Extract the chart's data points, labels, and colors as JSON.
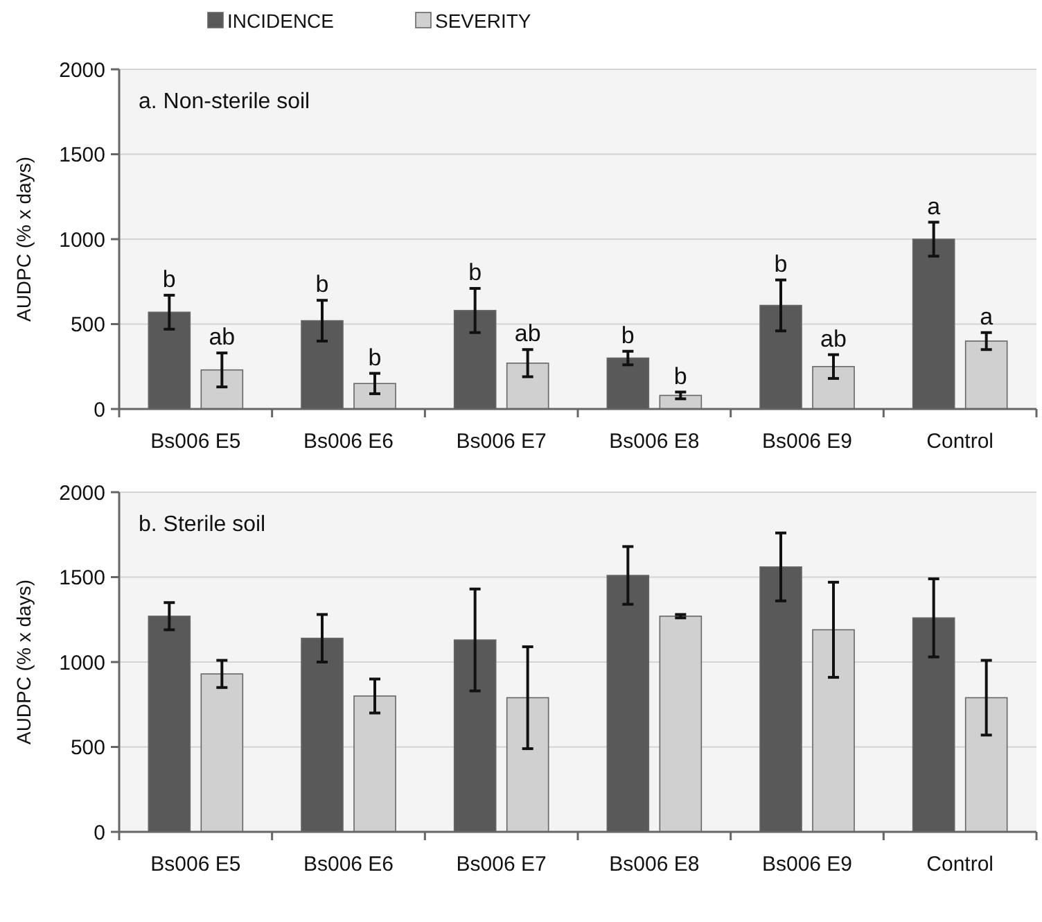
{
  "chart_data": [
    {
      "type": "bar",
      "title": "a. Non-sterile soil",
      "ylabel": "AUDPC (% x days)",
      "categories": [
        "Bs006 E5",
        "Bs006 E6",
        "Bs006 E7",
        "Bs006 E8",
        "Bs006 E9",
        "Control"
      ],
      "series": [
        {
          "name": "INCIDENCE",
          "color": "#595959",
          "values": [
            570,
            520,
            580,
            300,
            610,
            1000
          ],
          "errors": [
            100,
            120,
            130,
            40,
            150,
            100
          ],
          "value_labels": [
            "b",
            "b",
            "b",
            "b",
            "b",
            "a"
          ]
        },
        {
          "name": "SEVERITY",
          "color": "#d0d0d0",
          "values": [
            230,
            150,
            270,
            80,
            250,
            400
          ],
          "errors": [
            100,
            60,
            80,
            20,
            70,
            50
          ],
          "value_labels": [
            "ab",
            "b",
            "ab",
            "b",
            "ab",
            "a"
          ]
        }
      ],
      "ylim": [
        0,
        2000
      ],
      "yticks": [
        0,
        500,
        1000,
        1500,
        2000
      ],
      "grid": "y",
      "legend": "top"
    },
    {
      "type": "bar",
      "title": "b. Sterile soil",
      "ylabel": "AUDPC (% x days)",
      "categories": [
        "Bs006 E5",
        "Bs006 E6",
        "Bs006 E7",
        "Bs006 E8",
        "Bs006 E9",
        "Control"
      ],
      "series": [
        {
          "color": "#595959",
          "values": [
            1270,
            1140,
            1130,
            1510,
            1560,
            1260
          ],
          "errors": [
            80,
            140,
            300,
            170,
            200,
            230
          ]
        },
        {
          "color": "#d0d0d0",
          "values": [
            930,
            800,
            790,
            1270,
            1190,
            790
          ],
          "errors": [
            80,
            100,
            300,
            10,
            280,
            220
          ]
        }
      ],
      "ylim": [
        0,
        2000
      ],
      "yticks": [
        0,
        500,
        1000,
        1500,
        2000
      ],
      "grid": "y"
    }
  ]
}
